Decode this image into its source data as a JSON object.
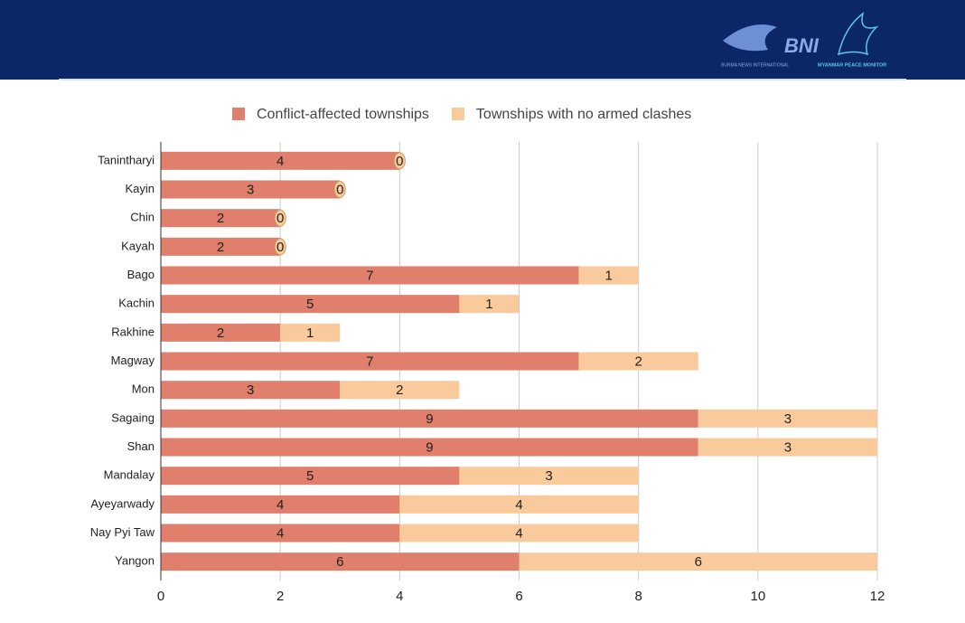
{
  "header": {
    "logo_1_mark": "BNI",
    "logo_1_caption": "BURMA NEWS INTERNATIONAL",
    "logo_2_caption": "MYANMAR PEACE MONITOR"
  },
  "chart_data": {
    "type": "stacked_bar_horizontal",
    "categories": [
      "Tanintharyi",
      "Kayin",
      "Chin",
      "Kayah",
      "Bago",
      "Kachin",
      "Rakhine",
      "Magway",
      "Mon",
      "Sagaing",
      "Shan",
      "Mandalay",
      "Ayeyarwady",
      "Nay Pyi Taw",
      "Yangon"
    ],
    "series": [
      {
        "name": "Conflict-affected townships",
        "color": "#df7f6c",
        "values": [
          4,
          3,
          2,
          2,
          7,
          5,
          2,
          7,
          3,
          9,
          9,
          5,
          4,
          4,
          6
        ]
      },
      {
        "name": "Townships with no armed clashes",
        "color": "#f9cb9c",
        "values": [
          0,
          0,
          0,
          0,
          1,
          1,
          1,
          2,
          2,
          3,
          3,
          3,
          4,
          4,
          6
        ]
      }
    ],
    "xlim": [
      0,
      12
    ],
    "xticks": [
      0,
      2,
      4,
      6,
      8,
      10,
      12
    ],
    "grid": true,
    "legend": "top"
  }
}
